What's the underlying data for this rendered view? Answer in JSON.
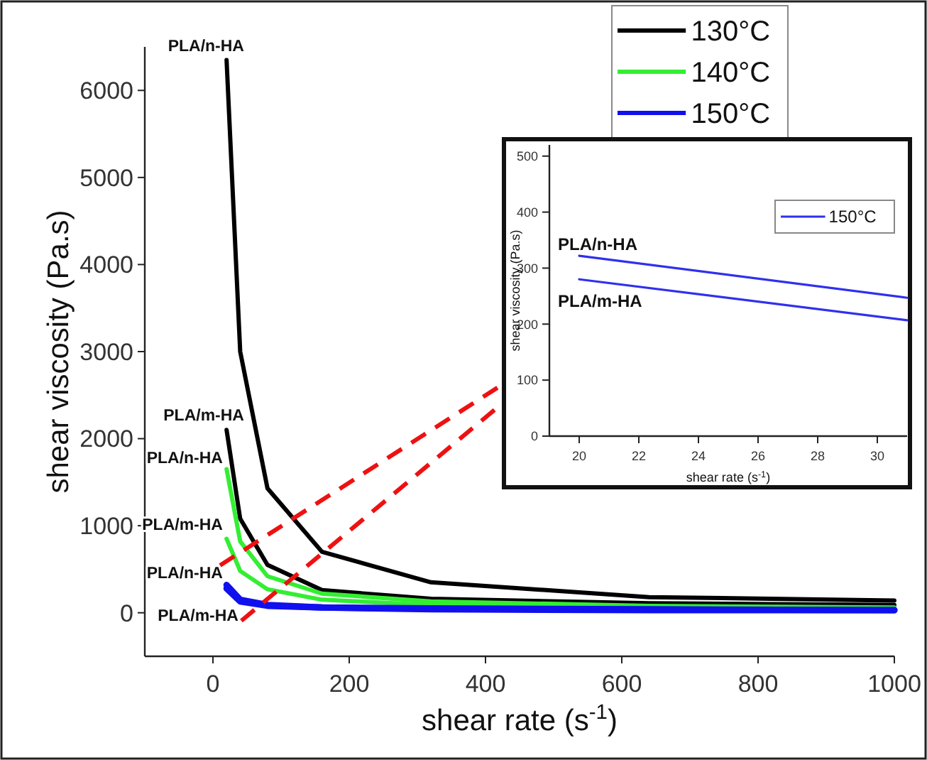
{
  "chart_data": [
    {
      "type": "line",
      "xlabel": "shear rate (s$^{-1}$)",
      "ylabel": "shear viscosity (Pa.s)",
      "x": [
        20,
        40,
        80,
        160,
        320,
        640,
        1000
      ],
      "xlim": [
        -100,
        1000
      ],
      "ylim": [
        -500,
        6500
      ],
      "xticks": [
        0,
        200,
        400,
        600,
        800,
        1000
      ],
      "yticks": [
        0,
        1000,
        2000,
        3000,
        4000,
        5000,
        6000
      ],
      "grid": false,
      "legend": "top right",
      "line_style": "solid",
      "series": [
        {
          "name": "130°C",
          "color": "#000000",
          "values": [
            6350,
            3000,
            1430,
            700,
            350,
            180,
            140
          ]
        },
        {
          "color": "#000000",
          "values": [
            2100,
            1080,
            550,
            260,
            160,
            110,
            90
          ]
        },
        {
          "name": "140°C",
          "color": "#33ee33",
          "values": [
            1650,
            820,
            420,
            220,
            130,
            80,
            60
          ]
        },
        {
          "color": "#33ee33",
          "values": [
            850,
            480,
            270,
            150,
            90,
            60,
            50
          ]
        },
        {
          "name": "150°C",
          "color": "#1010ee",
          "values": [
            320,
            150,
            90,
            60,
            50,
            40,
            30
          ]
        },
        {
          "color": "#1010ee",
          "values": [
            280,
            130,
            80,
            60,
            40,
            30,
            30
          ]
        }
      ],
      "annotations": [
        "PLA/n-HA",
        "PLA/m-HA",
        "PLA/n-HA",
        "PLA/m-HA",
        "PLA/n-HA",
        "PLA/m-HA"
      ]
    },
    {
      "type": "line",
      "xlabel": "shear rate (s$^{-1}$)",
      "ylabel": "shear viscosity (Pa.s)",
      "xlim": [
        19,
        31
      ],
      "ylim": [
        0,
        520
      ],
      "xticks": [
        20,
        22,
        24,
        26,
        28,
        30
      ],
      "yticks": [
        0,
        100,
        200,
        300,
        400,
        500
      ],
      "grid": false,
      "legend": "top right",
      "line_style": "solid",
      "x": [
        20,
        31
      ],
      "series": [
        {
          "name": "150°C",
          "color": "#3030ee",
          "values": [
            322,
            247
          ]
        },
        {
          "color": "#3030ee",
          "values": [
            280,
            207
          ]
        }
      ],
      "annotations": [
        "PLA/n-HA",
        "PLA/m-HA"
      ]
    }
  ]
}
